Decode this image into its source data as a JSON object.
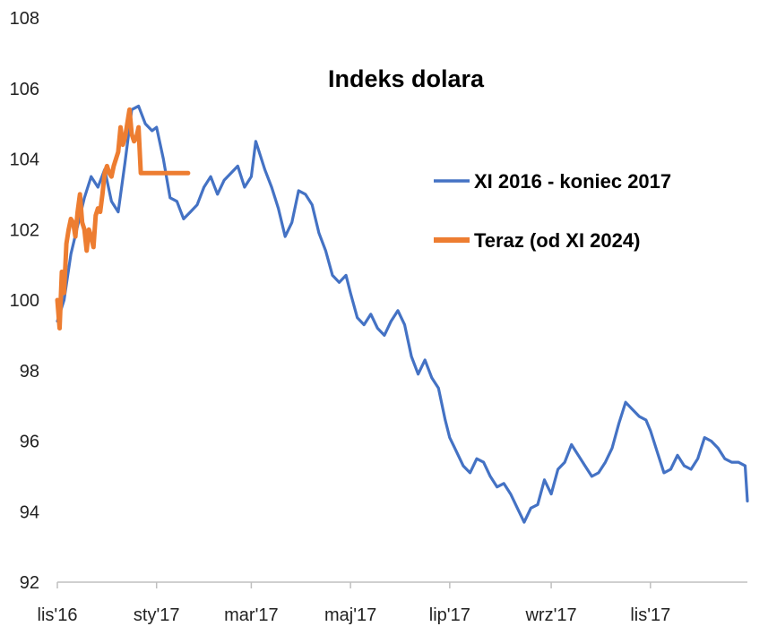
{
  "chart_data": {
    "type": "line",
    "title": "Indeks dolara",
    "xlabel": "",
    "ylabel": "",
    "ylim": [
      92,
      108
    ],
    "y_ticks": [
      92,
      94,
      96,
      98,
      100,
      102,
      104,
      106,
      108
    ],
    "x_ticks": [
      {
        "label": "lis'16",
        "index": 0
      },
      {
        "label": "sty'17",
        "index": 44
      },
      {
        "label": "mar'17",
        "index": 86
      },
      {
        "label": "maj'17",
        "index": 130
      },
      {
        "label": "lip'17",
        "index": 174
      },
      {
        "label": "wrz'17",
        "index": 219
      },
      {
        "label": "lis'17",
        "index": 263
      }
    ],
    "x_count": 307,
    "legend": {
      "placement": "right"
    },
    "series": [
      {
        "name": "XI 2016 - koniec 2017",
        "color": "#4472C4",
        "x": [
          0,
          3,
          6,
          9,
          12,
          15,
          18,
          21,
          24,
          27,
          30,
          33,
          36,
          39,
          42,
          44,
          47,
          50,
          53,
          56,
          59,
          62,
          65,
          68,
          71,
          74,
          77,
          80,
          83,
          86,
          88,
          90,
          92,
          95,
          98,
          101,
          104,
          107,
          110,
          113,
          116,
          119,
          122,
          125,
          128,
          130,
          133,
          136,
          139,
          142,
          145,
          148,
          151,
          154,
          157,
          160,
          163,
          166,
          169,
          172,
          174,
          177,
          180,
          183,
          186,
          189,
          192,
          195,
          198,
          201,
          204,
          207,
          210,
          213,
          216,
          219,
          222,
          225,
          228,
          231,
          234,
          237,
          240,
          243,
          246,
          249,
          252,
          255,
          258,
          261,
          263,
          266,
          269,
          272,
          275,
          278,
          281,
          284,
          287,
          290,
          293,
          296,
          299,
          302,
          305,
          306
        ],
        "values": [
          99.4,
          100.0,
          101.3,
          102.1,
          102.9,
          103.5,
          103.2,
          103.7,
          102.8,
          102.5,
          103.9,
          105.4,
          105.5,
          105.0,
          104.8,
          104.9,
          104.0,
          102.9,
          102.8,
          102.3,
          102.5,
          102.7,
          103.2,
          103.5,
          103.0,
          103.4,
          103.6,
          103.8,
          103.2,
          103.5,
          104.5,
          104.1,
          103.7,
          103.2,
          102.6,
          101.8,
          102.2,
          103.1,
          103.0,
          102.7,
          101.9,
          101.4,
          100.7,
          100.5,
          100.7,
          100.2,
          99.5,
          99.3,
          99.6,
          99.2,
          99.0,
          99.4,
          99.7,
          99.3,
          98.4,
          97.9,
          98.3,
          97.8,
          97.5,
          96.6,
          96.1,
          95.7,
          95.3,
          95.1,
          95.5,
          95.4,
          95.0,
          94.7,
          94.8,
          94.5,
          94.1,
          93.7,
          94.1,
          94.2,
          94.9,
          94.5,
          95.2,
          95.4,
          95.9,
          95.6,
          95.3,
          95.0,
          95.1,
          95.4,
          95.8,
          96.5,
          97.1,
          96.9,
          96.7,
          96.6,
          96.3,
          95.7,
          95.1,
          95.2,
          95.6,
          95.3,
          95.2,
          95.5,
          96.1,
          96.0,
          95.8,
          95.5,
          95.4,
          95.4,
          95.3,
          94.3
        ]
      },
      {
        "name": "Teraz (od XI 2024)",
        "color": "#ED7D31",
        "x": [
          0,
          1,
          2,
          3,
          4,
          5,
          6,
          7,
          8,
          9,
          10,
          11,
          12,
          13,
          14,
          15,
          16,
          17,
          18,
          19,
          20,
          21,
          22,
          23,
          24,
          25,
          26,
          27,
          28,
          29,
          30,
          31,
          32,
          33,
          34,
          35,
          36,
          37,
          38,
          39,
          40,
          41,
          42,
          43,
          44,
          45,
          46,
          47,
          48,
          49,
          50,
          51,
          52,
          53,
          54,
          55,
          56,
          57,
          58
        ],
        "values": [
          100.0,
          99.2,
          100.8,
          100.2,
          101.6,
          102.0,
          102.3,
          102.2,
          101.8,
          102.5,
          103.0,
          102.2,
          102.0,
          101.4,
          102.0,
          101.8,
          101.5,
          102.4,
          102.6,
          102.5,
          103.0,
          103.6,
          103.8,
          103.6,
          103.5,
          103.8,
          104.0,
          104.2,
          104.9,
          104.4,
          104.6,
          105.0,
          105.4,
          104.7,
          104.5,
          104.6,
          104.9,
          103.6,
          103.6,
          103.6,
          103.6,
          103.6,
          103.6,
          103.6,
          103.6,
          103.6,
          103.6,
          103.6,
          103.6,
          103.6,
          103.6,
          103.6,
          103.6,
          103.6,
          103.6,
          103.6,
          103.6,
          103.6,
          103.6
        ]
      }
    ]
  }
}
